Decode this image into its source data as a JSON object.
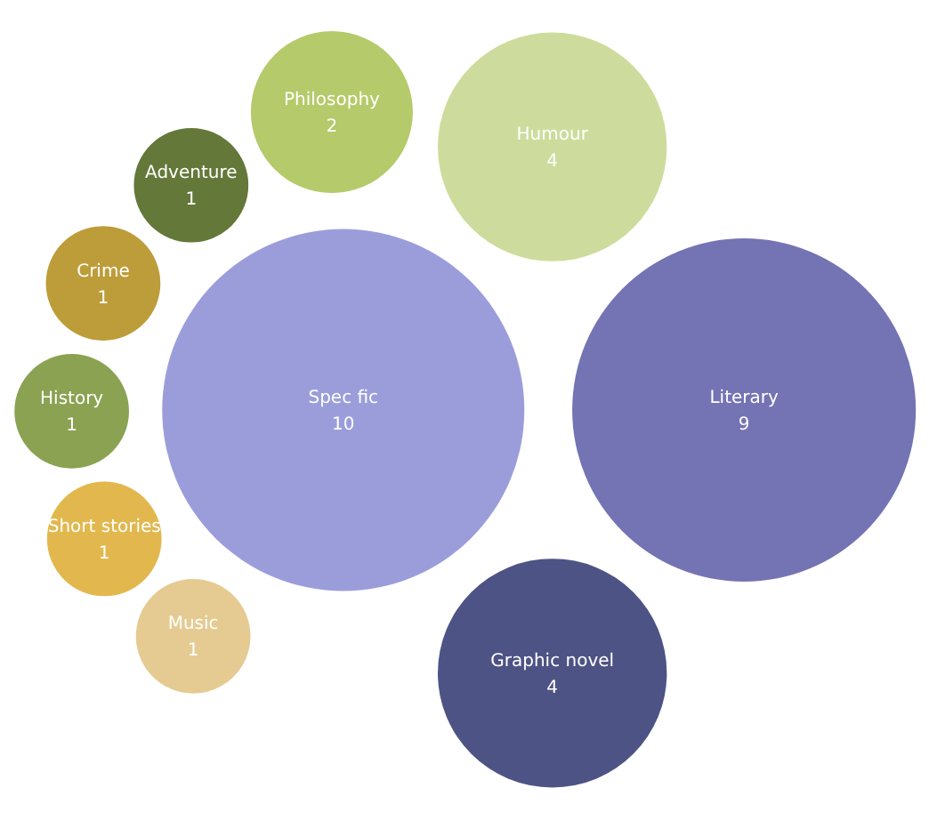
{
  "chart_data": {
    "type": "other",
    "data_labels": true,
    "categories": [
      "Spec fic",
      "Literary",
      "Humour",
      "Graphic novel",
      "Philosophy",
      "Adventure",
      "Crime",
      "History",
      "Short stories",
      "Music"
    ],
    "values": [
      10,
      9,
      4,
      4,
      2,
      1,
      1,
      1,
      1,
      1
    ],
    "colors": [
      "#9b9ddb",
      "#7473b4",
      "#cddc9c",
      "#4e5385",
      "#b5ca6a",
      "#647839",
      "#bd9d39",
      "#8aa252",
      "#e2b84e",
      "#e5cb92"
    ]
  }
}
